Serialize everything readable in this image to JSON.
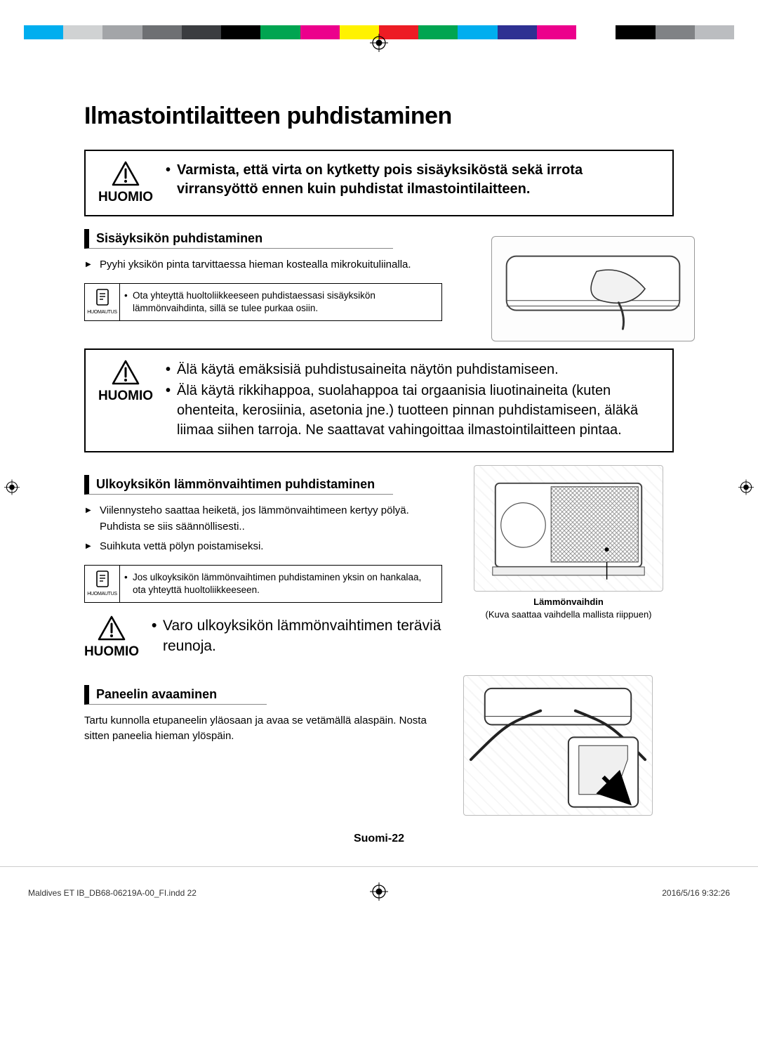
{
  "printer": {
    "strip_colors": [
      "#00aeef",
      "#d0d2d3",
      "#a3a5a8",
      "#6e7073",
      "#3b3d40",
      "#000000",
      "#00a551",
      "#ec008c",
      "#fff200",
      "#ed1c24",
      "#00a551",
      "#00aeef",
      "#2e3192",
      "#ec008c",
      "#ffffff",
      "#000000",
      "#808285",
      "#bbbdc0"
    ],
    "footer_filename": "Maldives ET IB_DB68-06219A-00_FI.indd   22",
    "footer_date": "2016/5/16   9:32:26"
  },
  "page_title": "Ilmastointilaitteen puhdistaminen",
  "caution_label": "HUOMIO",
  "caution1_text": "Varmista, että virta on kytketty pois sisäyksiköstä sekä irrota virransyöttö ennen kuin puhdistat ilmastointilaitteen.",
  "section1": {
    "heading": "Sisäyksikön puhdistaminen",
    "bullet": "Pyyhi yksikön pinta tarvittaessa hieman kostealla mikrokuituliinalla.",
    "note_label": "HUOMAUTUS",
    "note_text": "Ota yhteyttä huoltoliikkeeseen puhdistaessasi sisäyksikön lämmönvaihdinta, sillä se tulee purkaa osiin."
  },
  "caution2_items": [
    "Älä käytä emäksisiä puhdistusaineita näytön puhdistamiseen.",
    "Älä käytä rikkihappoa, suolahappoa tai orgaanisia liuotinaineita (kuten ohenteita, kerosiinia, asetonia jne.) tuotteen pinnan puhdistamiseen, äläkä liimaa siihen tarroja. Ne saattavat vahingoittaa ilmastointilaitteen pintaa."
  ],
  "section2": {
    "heading": "Ulkoyksikön lämmönvaihtimen puhdistaminen",
    "bullets": [
      "Viilennysteho saattaa heiketä, jos lämmönvaihtimeen kertyy pölyä. Puhdista se siis säännöllisesti..",
      "Suihkuta vettä pölyn poistamiseksi."
    ],
    "note_label": "HUOMAUTUS",
    "note_text": "Jos ulkoyksikön lämmönvaihtimen puhdistaminen yksin on hankalaa, ota yhteyttä huoltoliikkeeseen.",
    "figure_label": "Lämmönvaihdin",
    "figure_caption": "(Kuva saattaa vaihdella mallista riippuen)"
  },
  "caution3_text": "Varo ulkoyksikön lämmönvaihtimen teräviä reunoja.",
  "section3": {
    "heading": "Paneelin avaaminen",
    "text": "Tartu kunnolla etupaneelin yläosaan ja avaa se vetämällä alaspäin. Nosta sitten paneelia hieman ylöspäin."
  },
  "page_number": "Suomi-22"
}
